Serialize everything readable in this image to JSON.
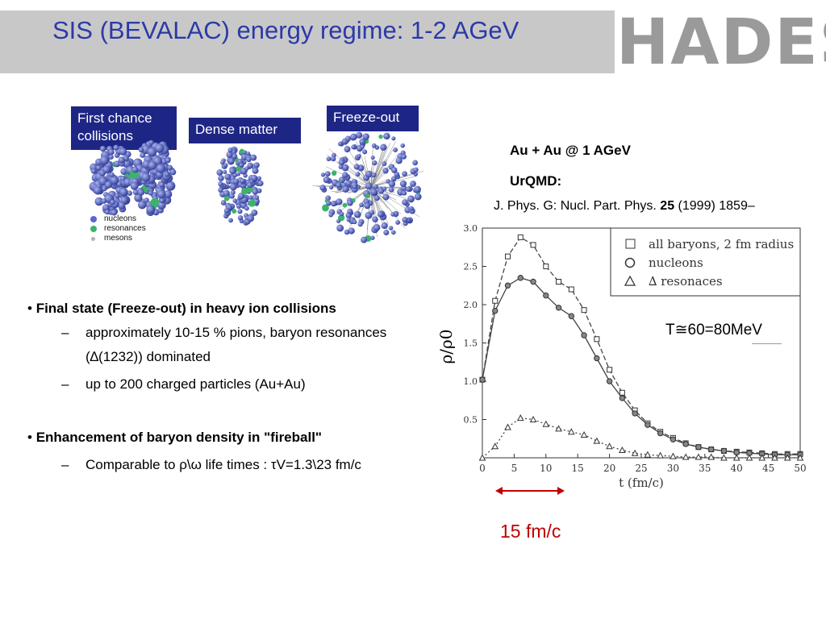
{
  "header": {
    "title": "SIS (BEVALAC) energy regime: 1-2 AGeV",
    "logo_text": "HADES",
    "bg_color": "#c8c8c8",
    "title_color": "#2b3aa8"
  },
  "stages": {
    "first_chance": "First chance collisions",
    "dense": "Dense matter",
    "freeze": "Freeze-out",
    "box_color": "#1e2685"
  },
  "particle_legend": {
    "nucleons": "nucleons",
    "resonances": "resonances",
    "mesons": "mesons"
  },
  "system": {
    "reaction": "Au + Au @ 1 AGeV",
    "model": "UrQMD:",
    "ref_prefix": "J. Phys. G: Nucl. Part. Phys.",
    "ref_volume": "25",
    "ref_suffix": "(1999) 1859–"
  },
  "bullets": {
    "b1_title": "Final state (Freeze-out) in heavy ion collisions",
    "b1_sub1": "approximately 10-15 % pions, baryon resonances (∆(1232)) dominated",
    "b1_sub2": "up to 200 charged particles (Au+Au)",
    "b2_title": "Enhancement of baryon density in \"fireball\"",
    "b2_sub1": "Comparable to ρ\\ω life times : τV=1.3\\23 fm/c"
  },
  "annotation": {
    "temperature": "T≅60=80MeV",
    "duration": "15 fm/c",
    "arrow_color": "#c00000"
  },
  "chart_data": {
    "type": "line",
    "xlabel": "t (fm/c)",
    "ylabel": "ρ/ρ0",
    "xlim": [
      0,
      50
    ],
    "ylim": [
      0,
      3.0
    ],
    "x_ticks": [
      0,
      5,
      10,
      15,
      20,
      25,
      30,
      35,
      40,
      45,
      50
    ],
    "y_ticks": [
      0.5,
      1.0,
      1.5,
      2.0,
      2.5,
      3.0
    ],
    "y_tick_labels": [
      "0.5",
      "1.0",
      "1.5",
      "2.0",
      "2.5",
      "3.0"
    ],
    "legend_position": "top-right",
    "series": [
      {
        "name": "all baryons, 2 fm radius",
        "marker": "square",
        "dash": "6,3",
        "x": [
          0,
          2,
          4,
          6,
          8,
          10,
          12,
          14,
          16,
          18,
          20,
          22,
          24,
          26,
          28,
          30,
          32,
          34,
          36,
          38,
          40,
          42,
          44,
          46,
          48,
          50
        ],
        "y": [
          1.02,
          2.05,
          2.63,
          2.88,
          2.78,
          2.5,
          2.3,
          2.2,
          1.93,
          1.55,
          1.15,
          0.85,
          0.62,
          0.45,
          0.34,
          0.26,
          0.19,
          0.14,
          0.11,
          0.09,
          0.08,
          0.07,
          0.06,
          0.05,
          0.05,
          0.05
        ]
      },
      {
        "name": "nucleons",
        "marker": "circle",
        "dash": "",
        "x": [
          0,
          2,
          4,
          6,
          8,
          10,
          12,
          14,
          16,
          18,
          20,
          22,
          24,
          26,
          28,
          30,
          32,
          34,
          36,
          38,
          40,
          42,
          44,
          46,
          48,
          50
        ],
        "y": [
          1.02,
          1.92,
          2.25,
          2.35,
          2.3,
          2.12,
          1.96,
          1.85,
          1.6,
          1.3,
          1.0,
          0.78,
          0.58,
          0.43,
          0.32,
          0.24,
          0.18,
          0.14,
          0.11,
          0.09,
          0.07,
          0.06,
          0.05,
          0.04,
          0.04,
          0.04
        ]
      },
      {
        "name": "∆ resonaces",
        "marker": "triangle",
        "dash": "2,3",
        "x": [
          0,
          2,
          4,
          6,
          8,
          10,
          12,
          14,
          16,
          18,
          20,
          22,
          24,
          26,
          28,
          30,
          32,
          34,
          36,
          38,
          40,
          42,
          44,
          46,
          48,
          50
        ],
        "y": [
          0.0,
          0.15,
          0.4,
          0.52,
          0.5,
          0.44,
          0.38,
          0.34,
          0.3,
          0.22,
          0.15,
          0.1,
          0.06,
          0.04,
          0.03,
          0.02,
          0.01,
          0.01,
          0.01,
          0.0,
          0.0,
          0.0,
          0.0,
          0.0,
          0.0,
          0.0
        ]
      }
    ]
  }
}
